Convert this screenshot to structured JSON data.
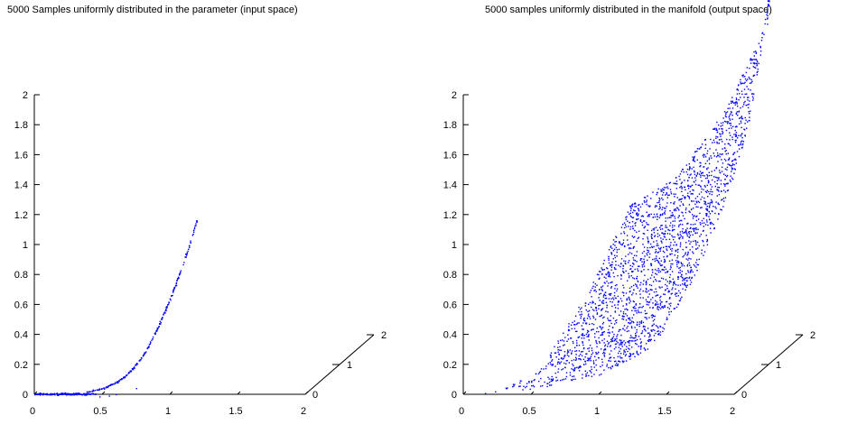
{
  "chart_data": [
    {
      "type": "scatter",
      "projection": "3d",
      "title": "5000 Samples uniformly distributed in the parameter (input space)",
      "sample_count": 5000,
      "xlim": [
        0,
        2
      ],
      "ylim": [
        0,
        2
      ],
      "zlim": [
        0,
        2
      ],
      "x_ticks": [
        "0",
        "0.5",
        "1",
        "1.5",
        "2"
      ],
      "y_ticks": [
        "0",
        "1",
        "2"
      ],
      "z_ticks": [
        "0",
        "0.2",
        "0.4",
        "0.6",
        "0.8",
        "1",
        "1.2",
        "1.4",
        "1.6",
        "1.8",
        "2"
      ],
      "grid": false,
      "marker_color": "#0000ff",
      "points": [
        {
          "x": 0.0,
          "y": 0,
          "z": 0.0
        },
        {
          "x": 0.1,
          "y": 0,
          "z": 0.0
        },
        {
          "x": 0.2,
          "y": 0,
          "z": 0.0
        },
        {
          "x": 0.3,
          "y": 0,
          "z": 0.01
        },
        {
          "x": 0.4,
          "y": 0,
          "z": 0.02
        },
        {
          "x": 0.45,
          "y": 0,
          "z": 0.03
        },
        {
          "x": 0.5,
          "y": 0,
          "z": 0.04
        },
        {
          "x": 0.55,
          "y": 0,
          "z": 0.06
        },
        {
          "x": 0.6,
          "y": 0,
          "z": 0.08
        },
        {
          "x": 0.65,
          "y": 0,
          "z": 0.11
        },
        {
          "x": 0.7,
          "y": 0,
          "z": 0.15
        },
        {
          "x": 0.75,
          "y": 0,
          "z": 0.2
        },
        {
          "x": 0.8,
          "y": 0,
          "z": 0.26
        },
        {
          "x": 0.85,
          "y": 0,
          "z": 0.34
        },
        {
          "x": 0.9,
          "y": 0,
          "z": 0.43
        },
        {
          "x": 0.95,
          "y": 0,
          "z": 0.53
        },
        {
          "x": 1.0,
          "y": 0,
          "z": 0.64
        },
        {
          "x": 1.05,
          "y": 0,
          "z": 0.76
        },
        {
          "x": 1.1,
          "y": 0,
          "z": 0.88
        },
        {
          "x": 1.15,
          "y": 0,
          "z": 1.02
        },
        {
          "x": 1.2,
          "y": 0,
          "z": 1.17
        }
      ]
    },
    {
      "type": "scatter",
      "projection": "3d",
      "title": "5000 samples uniformly distributed in the manifold (output space)",
      "sample_count": 5000,
      "xlim": [
        0,
        2
      ],
      "ylim": [
        0,
        2
      ],
      "zlim": [
        0,
        2
      ],
      "x_ticks": [
        "0",
        "0.5",
        "1",
        "1.5",
        "2"
      ],
      "y_ticks": [
        "0",
        "1",
        "2"
      ],
      "z_ticks": [
        "0",
        "0.2",
        "0.4",
        "0.6",
        "0.8",
        "1",
        "1.2",
        "1.4",
        "1.6",
        "1.8",
        "2"
      ],
      "grid": false,
      "marker_color": "#0000ff",
      "region_boundary": [
        {
          "x": 0.0,
          "y": 0.0,
          "z": 0.0
        },
        {
          "x": 0.5,
          "y": 0.0,
          "z": 0.03
        },
        {
          "x": 1.0,
          "y": 0.0,
          "z": 0.13
        },
        {
          "x": 1.4,
          "y": 0.0,
          "z": 0.32
        },
        {
          "x": 1.6,
          "y": 0.4,
          "z": 0.7
        },
        {
          "x": 1.75,
          "y": 0.9,
          "z": 1.22
        },
        {
          "x": 1.8,
          "y": 1.2,
          "z": 1.57
        },
        {
          "x": 1.8,
          "y": 1.7,
          "z": 2.13
        },
        {
          "x": 1.55,
          "y": 1.5,
          "z": 1.6
        },
        {
          "x": 1.25,
          "y": 1.2,
          "z": 1.2
        },
        {
          "x": 1.1,
          "y": 0.5,
          "z": 1.17
        },
        {
          "x": 0.9,
          "y": 0.2,
          "z": 0.7
        },
        {
          "x": 0.55,
          "y": 0.0,
          "z": 0.15
        },
        {
          "x": 0.2,
          "y": 0.0,
          "z": 0.01
        }
      ]
    }
  ]
}
